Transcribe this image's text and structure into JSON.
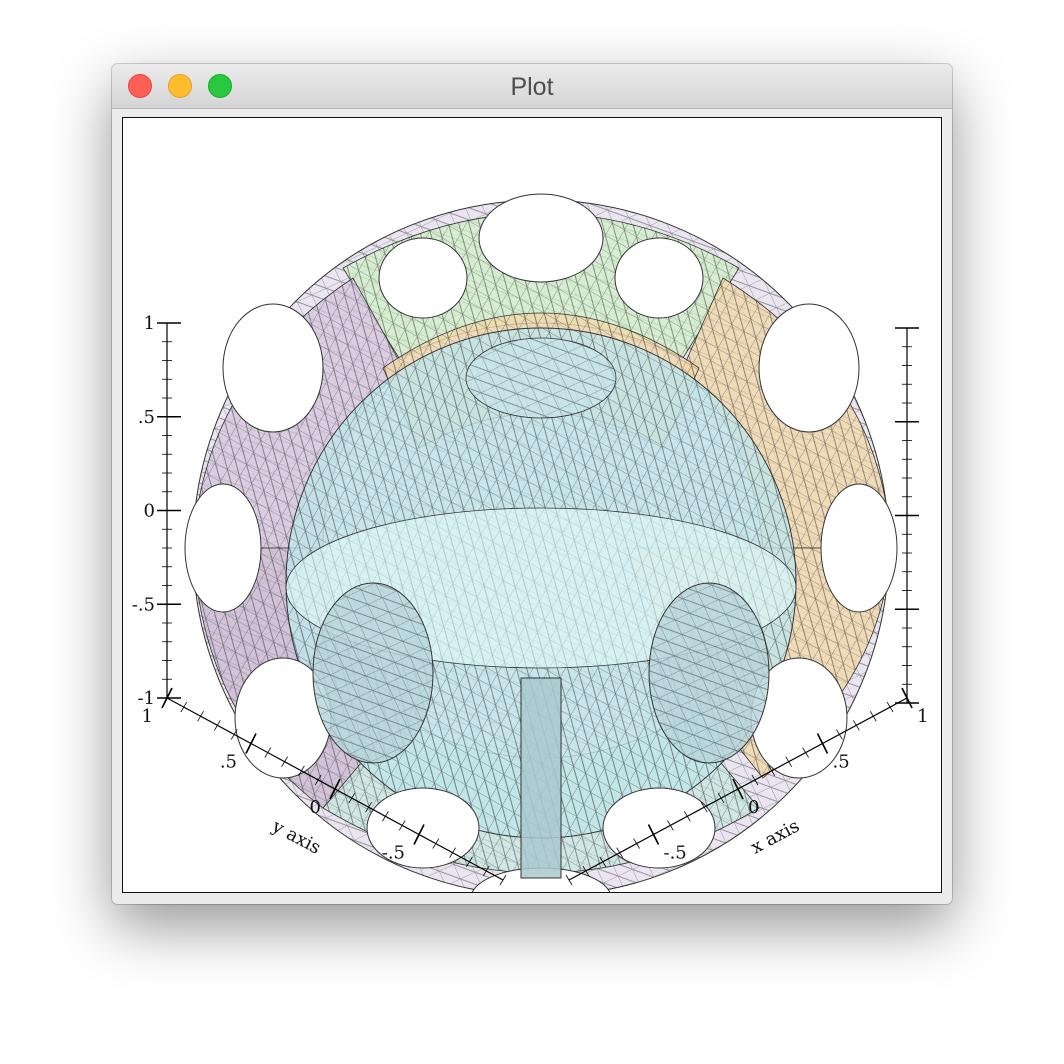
{
  "window": {
    "title": "Plot",
    "buttons": {
      "close": "close",
      "minimize": "minimize",
      "zoom": "zoom"
    }
  },
  "chart_data": {
    "type": "surface3d",
    "title": "",
    "xlabel": "x axis",
    "ylabel": "y axis",
    "zlabel": "",
    "x_ticks": [
      "-.5",
      "0",
      ".5",
      "1"
    ],
    "y_ticks": [
      "1",
      ".5",
      "0",
      "-.5"
    ],
    "z_ticks": [
      "-1",
      "-.5",
      "0",
      ".5",
      "1"
    ],
    "xlim": [
      -1,
      1
    ],
    "ylim": [
      -1,
      1
    ],
    "zlim": [
      -1,
      1
    ],
    "surfaces": [
      {
        "name": "inner sphere",
        "color": "#bfe6ea"
      },
      {
        "name": "outer shell with circular holes",
        "colors": [
          "#d6c6de",
          "#c8e8e0",
          "#f3d8a8",
          "#c9b7d2",
          "#d0f0c8"
        ]
      }
    ],
    "grid": false
  }
}
